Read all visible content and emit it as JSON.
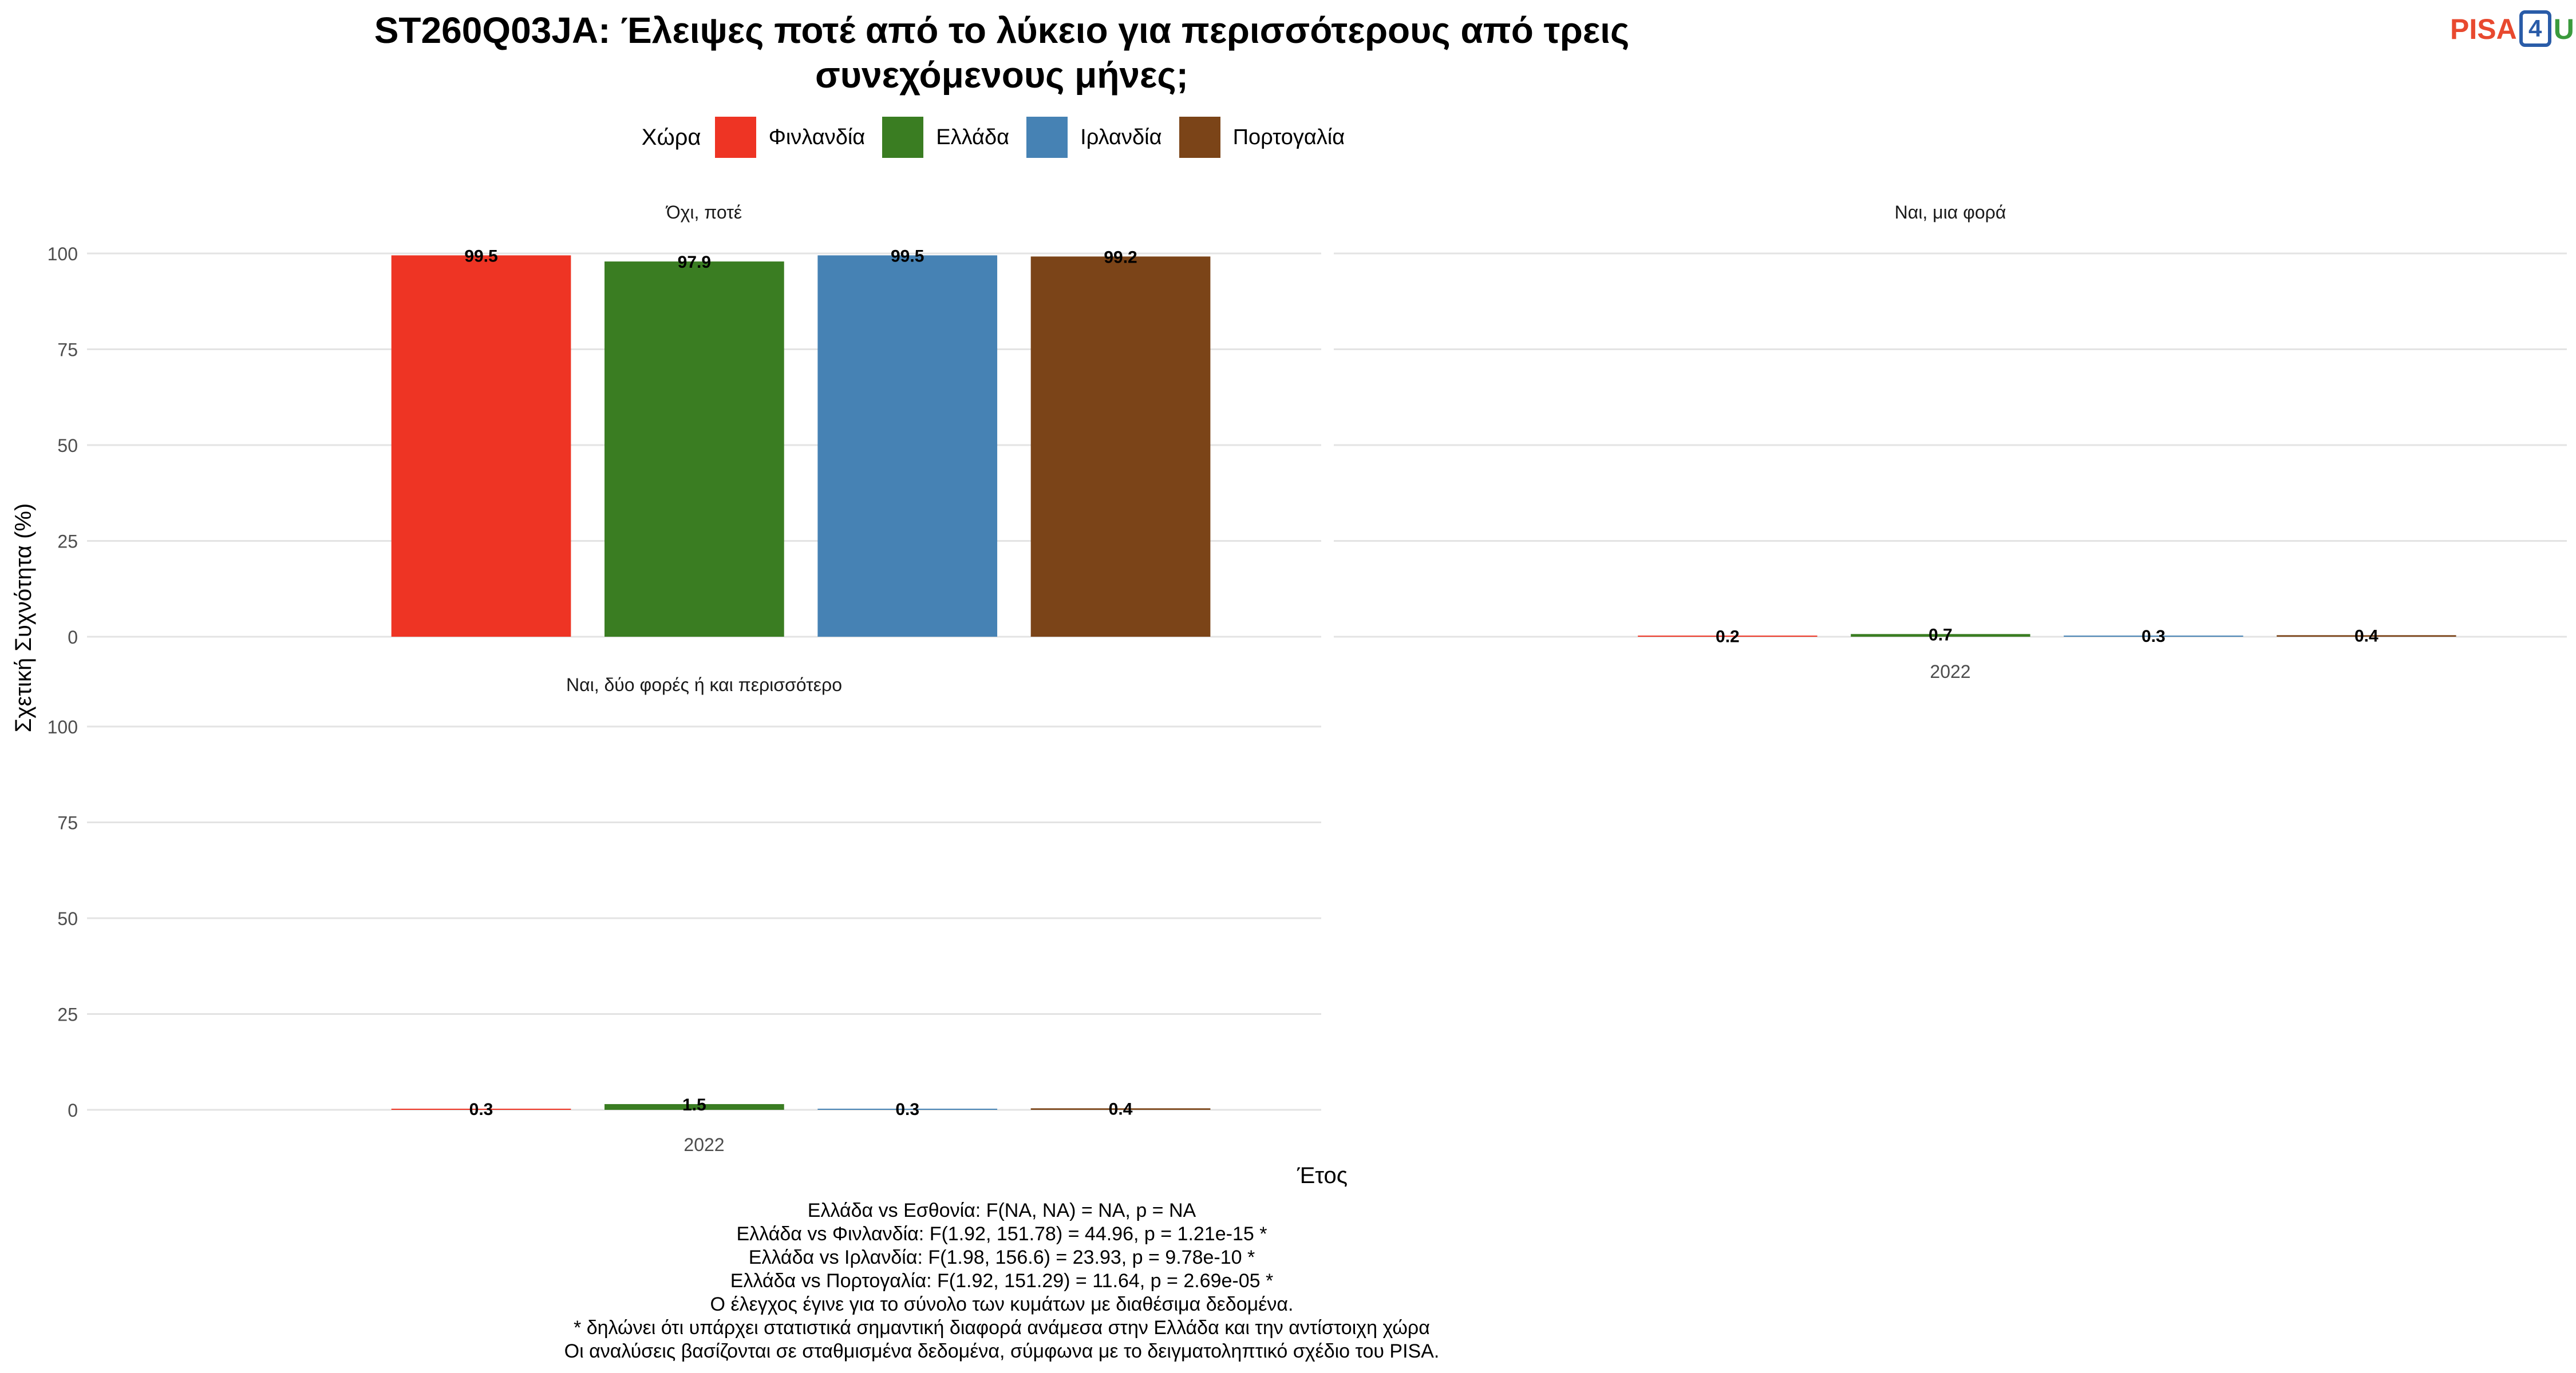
{
  "header": {
    "title_line1": "ST260Q03JA: Έλειψες ποτέ από το λύκειο για περισσότερους από τρεις",
    "title_line2": "συνεχόμενους μήνες;"
  },
  "logo": {
    "part1": "PISA",
    "part2": "4",
    "part3": "U"
  },
  "legend": {
    "title": "Χώρα",
    "items": [
      {
        "label": "Φινλανδία",
        "color": "#ee3424"
      },
      {
        "label": "Ελλάδα",
        "color": "#3a7d22"
      },
      {
        "label": "Ιρλανδία",
        "color": "#4682b4"
      },
      {
        "label": "Πορτογαλία",
        "color": "#7b4418"
      }
    ]
  },
  "chart_data": {
    "type": "bar",
    "ylabel": "Σχετική Συχνότητα (%)",
    "xlabel": "Έτος",
    "ylim": [
      0,
      100
    ],
    "yticks": [
      0,
      25,
      50,
      75,
      100
    ],
    "grid": true,
    "legend_placement": "top",
    "series_names": [
      "Φινλανδία",
      "Ελλάδα",
      "Ιρλανδία",
      "Πορτογαλία"
    ],
    "colors": [
      "#ee3424",
      "#3a7d22",
      "#4682b4",
      "#7b4418"
    ],
    "facets": [
      {
        "title": "Όχι, ποτέ",
        "x": "2022",
        "values": [
          99.5,
          97.9,
          99.5,
          99.2
        ],
        "labels": [
          "99.5",
          "97.9",
          "99.5",
          "99.2"
        ]
      },
      {
        "title": "Ναι, μια φορά",
        "x": "2022",
        "values": [
          0.2,
          0.7,
          0.3,
          0.4
        ],
        "labels": [
          "0.2",
          "0.7",
          "0.3",
          "0.4"
        ]
      },
      {
        "title": "Ναι, δύο φορές ή και περισσότερο",
        "x": "2022",
        "values": [
          0.3,
          1.5,
          0.3,
          0.4
        ],
        "labels": [
          "0.3",
          "1.5",
          "0.3",
          "0.4"
        ]
      }
    ]
  },
  "footer": {
    "lines": [
      "Ελλάδα vs Εσθονία: F(NA, NA) = NA, p = NA",
      "Ελλάδα vs Φινλανδία: F(1.92, 151.78) = 44.96, p = 1.21e-15 *",
      "Ελλάδα vs Ιρλανδία: F(1.98, 156.6) = 23.93, p = 9.78e-10 *",
      "Ελλάδα vs Πορτογαλία: F(1.92, 151.29) = 11.64, p = 2.69e-05 *",
      "Ο έλεγχος έγινε για το σύνολο των κυμάτων με διαθέσιμα δεδομένα.",
      "* δηλώνει ότι υπάρχει στατιστικά σημαντική διαφορά ανάμεσα στην Ελλάδα και την αντίστοιχη χώρα",
      "Οι αναλύσεις βασίζονται σε σταθμισμένα δεδομένα, σύμφωνα με το δειγματοληπτικό σχέδιο του PISA."
    ]
  }
}
